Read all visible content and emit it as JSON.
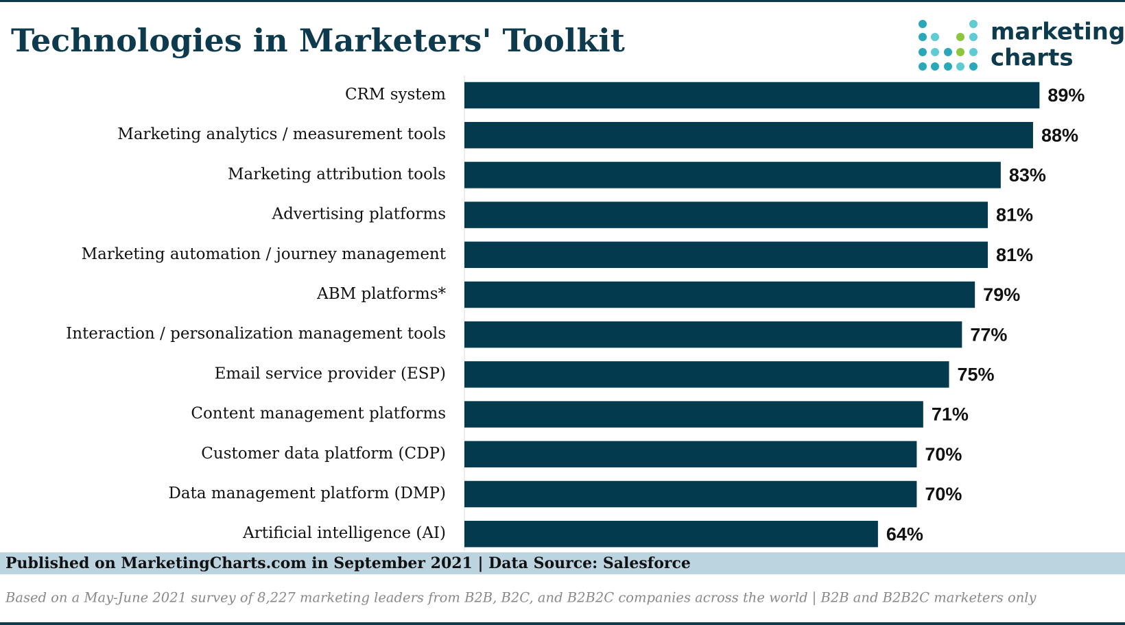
{
  "header": {
    "title": "Technologies in Marketers' Toolkit",
    "logo": [
      "marketing",
      "charts"
    ]
  },
  "chart_data": {
    "type": "bar",
    "orientation": "horizontal",
    "categories": [
      "CRM system",
      "Marketing analytics / measurement tools",
      "Marketing attribution tools",
      "Advertising platforms",
      "Marketing automation / journey management",
      "ABM platforms*",
      "Interaction / personalization management tools",
      "Email service provider (ESP)",
      "Content management platforms",
      "Customer data platform (CDP)",
      "Data management platform (DMP)",
      "Artificial intelligence (AI)"
    ],
    "values": [
      89,
      88,
      83,
      81,
      81,
      79,
      77,
      75,
      71,
      70,
      70,
      64
    ],
    "value_labels": [
      "89%",
      "88%",
      "83%",
      "81%",
      "81%",
      "79%",
      "77%",
      "75%",
      "71%",
      "70%",
      "70%",
      "64%"
    ],
    "color": "#033a4e"
  },
  "footer": {
    "source": "Published on MarketingCharts.com in September 2021 | Data Source: Salesforce",
    "note": "Based on a May-June 2021 survey of 8,227 marketing leaders from B2B, B2C, and B2B2C companies across the world | B2B and B2B2C marketers only"
  }
}
